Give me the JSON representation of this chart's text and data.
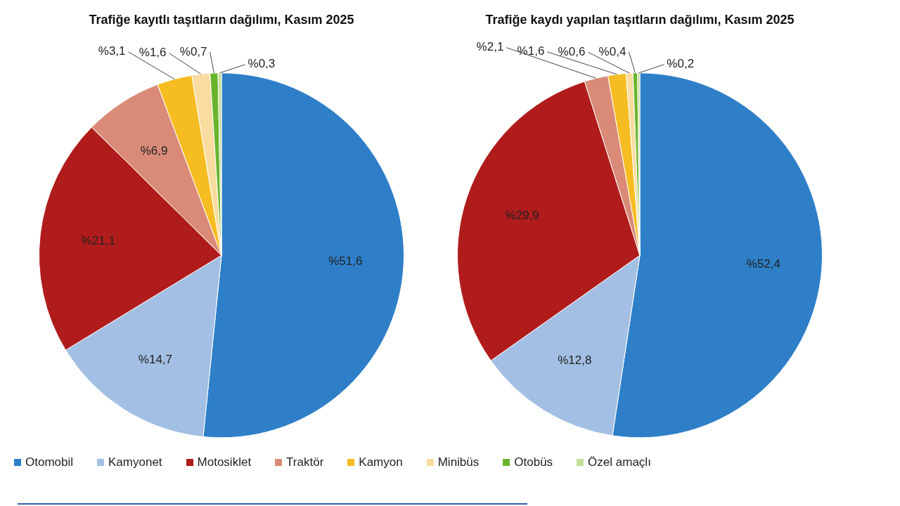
{
  "chart_data": [
    {
      "type": "pie",
      "title": "Trafiğe kayıtlı taşıtların dağılımı, Kasım 2025",
      "categories": [
        "Otomobil",
        "Kamyonet",
        "Motosiklet",
        "Traktör",
        "Kamyon",
        "Minibüs",
        "Otobüs",
        "Özel amaçlı"
      ],
      "values": [
        51.6,
        14.7,
        21.1,
        6.9,
        3.1,
        1.6,
        0.7,
        0.3
      ],
      "value_labels": [
        "%51,6",
        "%14,7",
        "%21,1",
        "%6,9",
        "%3,1",
        "%1,6",
        "%0,7",
        "%0,3"
      ],
      "colors": [
        "#2e7fc8",
        "#a3bfe3",
        "#b01c1c",
        "#d98b78",
        "#f5bd22",
        "#f8dca0",
        "#6ab42d",
        "#c5dd9a"
      ],
      "legend": "bottom"
    },
    {
      "type": "pie",
      "title": "Trafiğe kaydı yapılan taşıtların dağılımı, Kasım 2025",
      "categories": [
        null,
        null,
        null,
        null,
        null,
        null,
        null,
        null
      ],
      "values": [
        52.4,
        12.8,
        29.9,
        2.1,
        1.6,
        0.6,
        0.4,
        0.2
      ],
      "value_labels": [
        "%52,4",
        "%12,8",
        "%29,9",
        "%2,1",
        "%1,6",
        "%0,6",
        "%0,4",
        "%0,2"
      ],
      "colors": [
        "#2e7fc8",
        "#a3bfe3",
        "#b01c1c",
        "#d98b78",
        "#f5bd22",
        "#f8dca0",
        "#6ab42d",
        "#c5dd9a"
      ]
    }
  ]
}
